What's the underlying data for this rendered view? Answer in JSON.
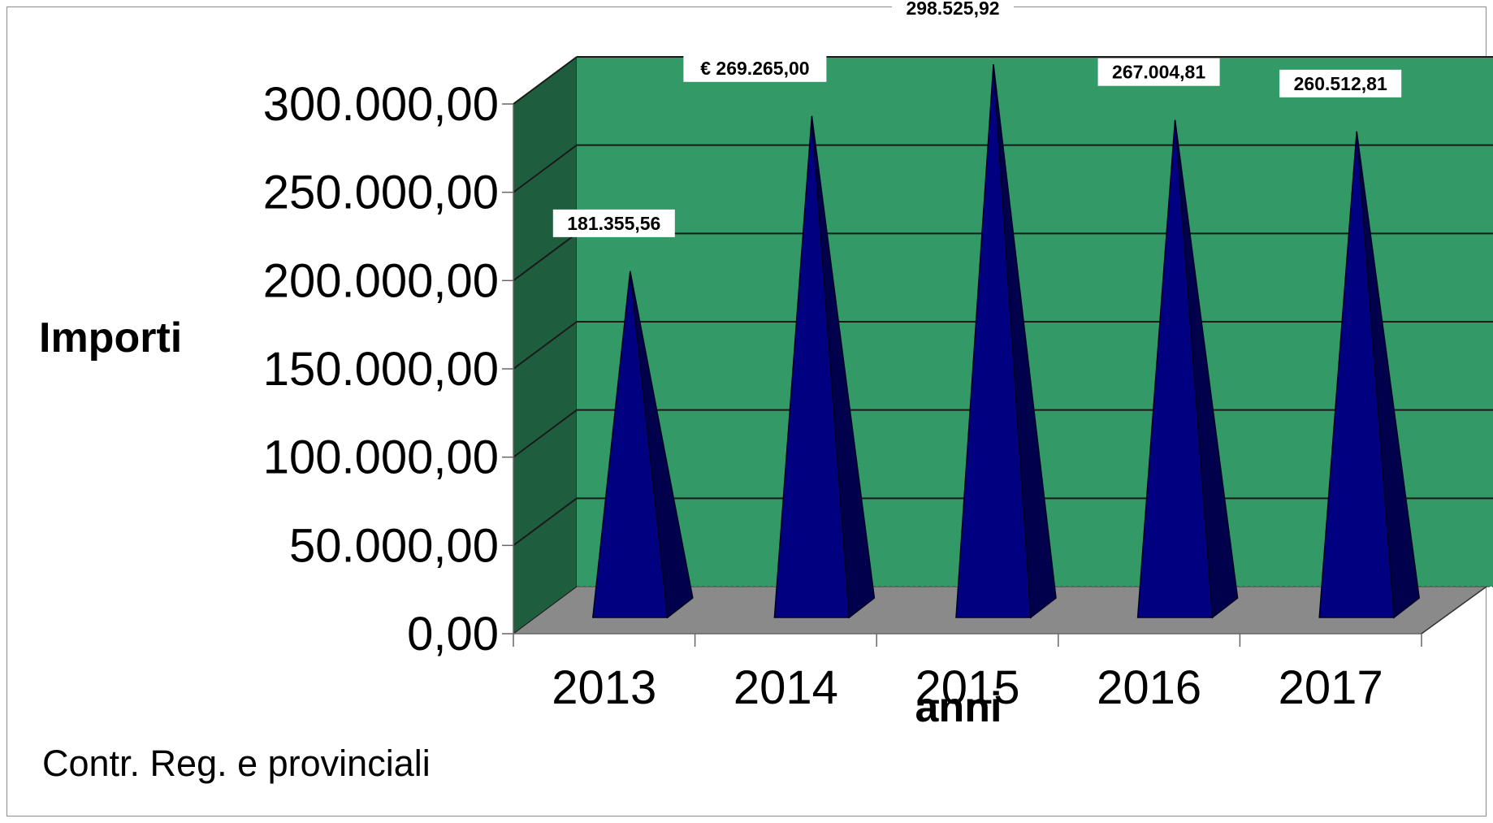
{
  "chart_data": {
    "type": "bar",
    "style": "3d-pyramid",
    "categories": [
      "2013",
      "2014",
      "2015",
      "2016",
      "2017"
    ],
    "values": [
      181355.56,
      269265.0,
      298525.92,
      267004.81,
      260512.81
    ],
    "data_labels": [
      "181.355,56",
      "€ 269.265,00",
      "298.525,92",
      "267.004,81",
      "260.512,81"
    ],
    "ylabel": "Importi",
    "xlabel": "anni",
    "ylim": [
      0,
      300000
    ],
    "yticks": [
      0,
      50000,
      100000,
      150000,
      200000,
      250000,
      300000
    ],
    "ytick_labels": [
      "0,00",
      "50.000,00",
      "100.000,00",
      "150.000,00",
      "200.000,00",
      "250.000,00",
      "300.000,00"
    ],
    "grid": true,
    "colors": {
      "wall": "#339966",
      "side_wall": "#1e5e3e",
      "floor": "#8a8a8a",
      "bar_front": "#000080",
      "bar_side": "#00004d"
    }
  },
  "footer": {
    "note": "Contr. Reg. e provinciali"
  }
}
